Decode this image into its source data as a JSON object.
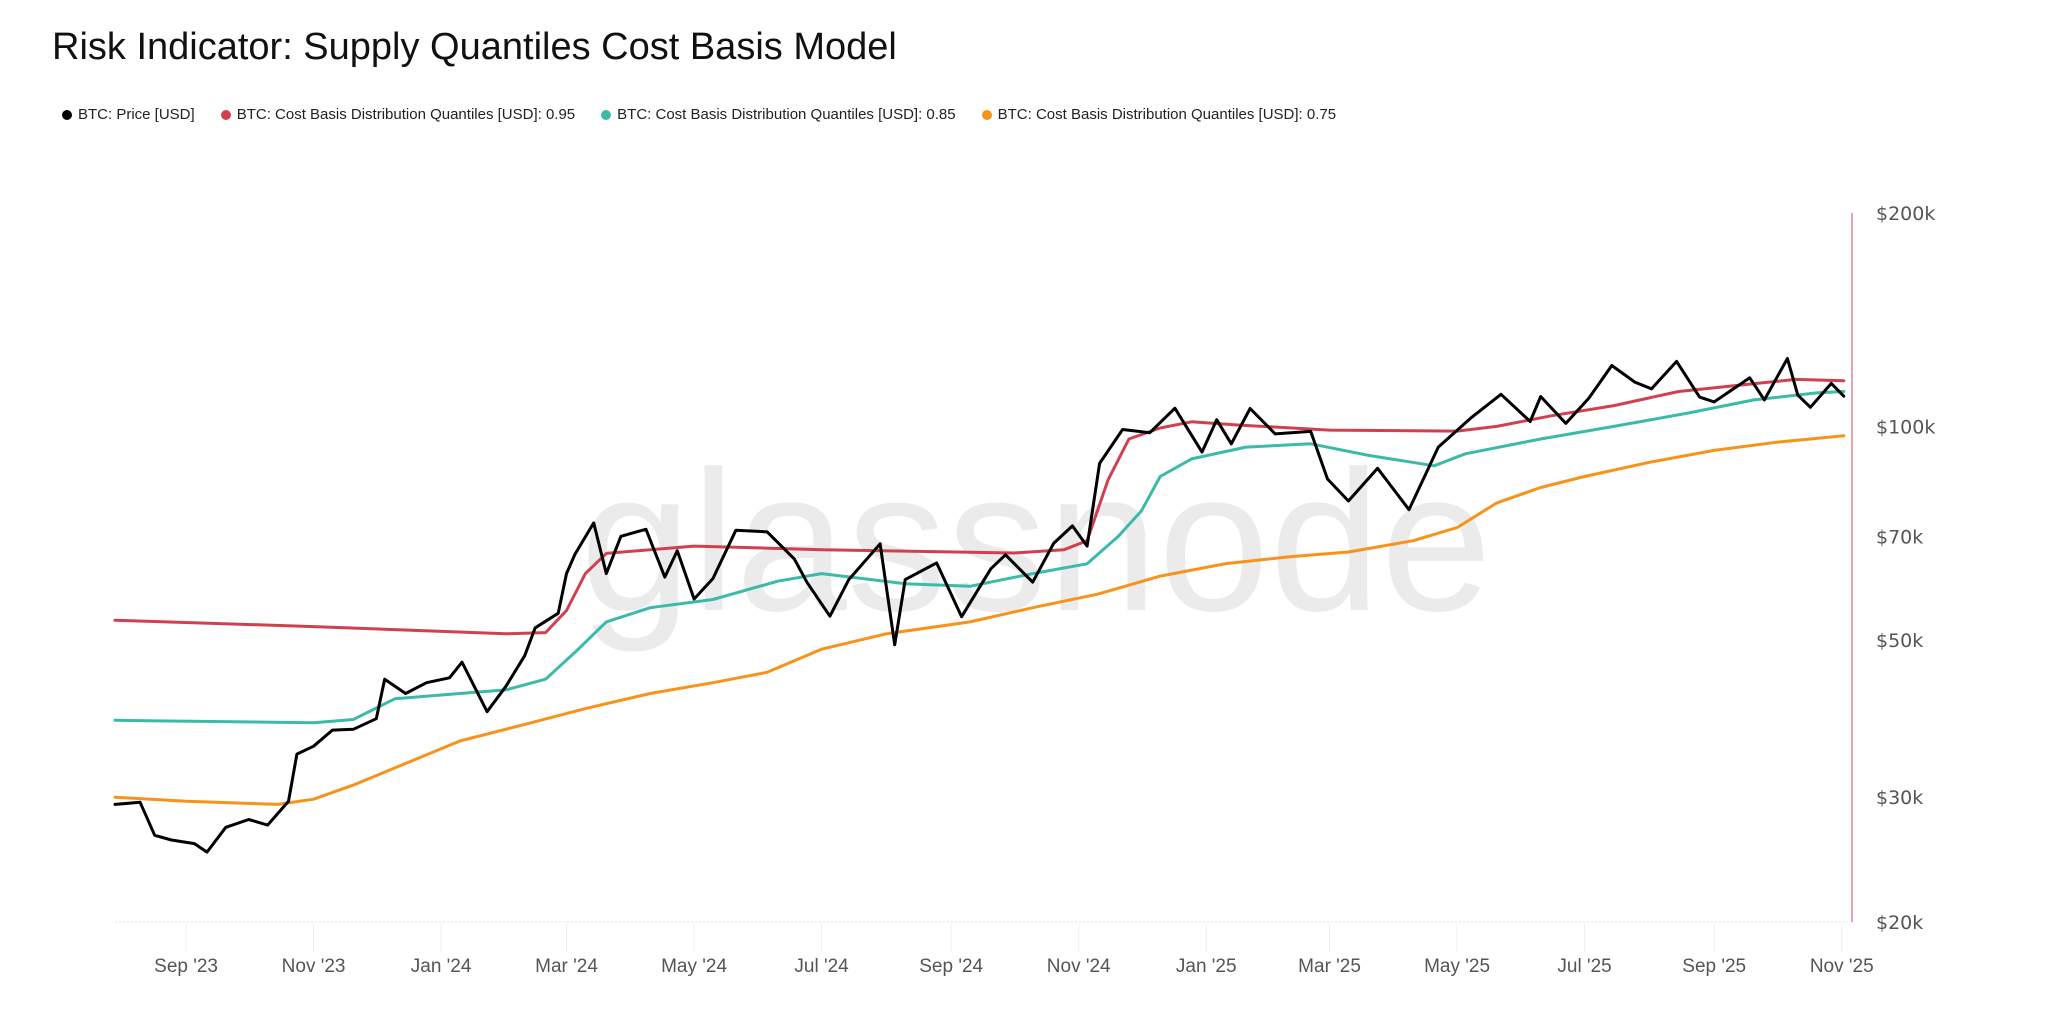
{
  "title": "Risk Indicator: Supply Quantiles Cost Basis Model",
  "watermark": "glassnode",
  "chart_data": {
    "type": "line",
    "title": "Risk Indicator: Supply Quantiles Cost Basis Model",
    "y_scale": "log",
    "ylim": [
      20000,
      200000
    ],
    "xlim": [
      "2023-07-29",
      "2025-11-04"
    ],
    "y_ticks": [
      {
        "v": 200000,
        "label": "$200k"
      },
      {
        "v": 100000,
        "label": "$100k"
      },
      {
        "v": 70000,
        "label": "$70k"
      },
      {
        "v": 50000,
        "label": "$50k"
      },
      {
        "v": 30000,
        "label": "$30k"
      },
      {
        "v": 20000,
        "label": "$20k"
      }
    ],
    "x_ticks": [
      {
        "d": "2023-09-01",
        "label": "Sep '23"
      },
      {
        "d": "2023-11-01",
        "label": "Nov '23"
      },
      {
        "d": "2024-01-01",
        "label": "Jan '24"
      },
      {
        "d": "2024-03-01",
        "label": "Mar '24"
      },
      {
        "d": "2024-05-01",
        "label": "May '24"
      },
      {
        "d": "2024-07-01",
        "label": "Jul '24"
      },
      {
        "d": "2024-09-01",
        "label": "Sep '24"
      },
      {
        "d": "2024-11-01",
        "label": "Nov '24"
      },
      {
        "d": "2025-01-01",
        "label": "Jan '25"
      },
      {
        "d": "2025-03-01",
        "label": "Mar '25"
      },
      {
        "d": "2025-05-01",
        "label": "May '25"
      },
      {
        "d": "2025-07-01",
        "label": "Jul '25"
      },
      {
        "d": "2025-09-01",
        "label": "Sep '25"
      },
      {
        "d": "2025-11-01",
        "label": "Nov '25"
      }
    ],
    "grid": false,
    "legend_position": "top-left",
    "series": [
      {
        "name": "BTC: Price [USD]",
        "color": "#000000",
        "width": 3,
        "points": [
          [
            "2023-07-29",
            29300
          ],
          [
            "2023-08-10",
            29500
          ],
          [
            "2023-08-17",
            26500
          ],
          [
            "2023-08-25",
            26100
          ],
          [
            "2023-09-05",
            25800
          ],
          [
            "2023-09-11",
            25100
          ],
          [
            "2023-09-20",
            27200
          ],
          [
            "2023-10-01",
            27900
          ],
          [
            "2023-10-10",
            27400
          ],
          [
            "2023-10-20",
            29600
          ],
          [
            "2023-10-24",
            34500
          ],
          [
            "2023-11-01",
            35400
          ],
          [
            "2023-11-10",
            37300
          ],
          [
            "2023-11-20",
            37400
          ],
          [
            "2023-12-01",
            38700
          ],
          [
            "2023-12-05",
            44000
          ],
          [
            "2023-12-15",
            42000
          ],
          [
            "2023-12-25",
            43500
          ],
          [
            "2024-01-05",
            44200
          ],
          [
            "2024-01-11",
            46500
          ],
          [
            "2024-01-23",
            39600
          ],
          [
            "2024-02-01",
            43000
          ],
          [
            "2024-02-10",
            47500
          ],
          [
            "2024-02-15",
            52000
          ],
          [
            "2024-02-26",
            54500
          ],
          [
            "2024-03-01",
            62000
          ],
          [
            "2024-03-05",
            66000
          ],
          [
            "2024-03-14",
            73100
          ],
          [
            "2024-03-20",
            62000
          ],
          [
            "2024-03-27",
            70000
          ],
          [
            "2024-04-08",
            71600
          ],
          [
            "2024-04-17",
            61300
          ],
          [
            "2024-04-23",
            66800
          ],
          [
            "2024-05-01",
            57100
          ],
          [
            "2024-05-10",
            61000
          ],
          [
            "2024-05-21",
            71400
          ],
          [
            "2024-06-05",
            71000
          ],
          [
            "2024-06-18",
            65000
          ],
          [
            "2024-06-24",
            60300
          ],
          [
            "2024-07-05",
            54000
          ],
          [
            "2024-07-14",
            60800
          ],
          [
            "2024-07-29",
            68300
          ],
          [
            "2024-08-05",
            49200
          ],
          [
            "2024-08-10",
            60800
          ],
          [
            "2024-08-25",
            64200
          ],
          [
            "2024-09-06",
            53900
          ],
          [
            "2024-09-20",
            63000
          ],
          [
            "2024-09-27",
            65900
          ],
          [
            "2024-10-10",
            60300
          ],
          [
            "2024-10-20",
            68400
          ],
          [
            "2024-10-29",
            72400
          ],
          [
            "2024-11-05",
            67800
          ],
          [
            "2024-11-11",
            88700
          ],
          [
            "2024-11-22",
            99000
          ],
          [
            "2024-12-05",
            98000
          ],
          [
            "2024-12-17",
            106100
          ],
          [
            "2024-12-30",
            92000
          ],
          [
            "2025-01-06",
            102200
          ],
          [
            "2025-01-13",
            94500
          ],
          [
            "2025-01-22",
            106000
          ],
          [
            "2025-02-03",
            97600
          ],
          [
            "2025-02-20",
            98400
          ],
          [
            "2025-02-28",
            84300
          ],
          [
            "2025-03-10",
            78500
          ],
          [
            "2025-03-24",
            87300
          ],
          [
            "2025-04-08",
            76300
          ],
          [
            "2025-04-22",
            93500
          ],
          [
            "2025-05-08",
            103000
          ],
          [
            "2025-05-22",
            111000
          ],
          [
            "2025-06-05",
            101600
          ],
          [
            "2025-06-10",
            110200
          ],
          [
            "2025-06-22",
            101000
          ],
          [
            "2025-07-03",
            109600
          ],
          [
            "2025-07-14",
            121900
          ],
          [
            "2025-07-25",
            115500
          ],
          [
            "2025-08-02",
            113000
          ],
          [
            "2025-08-14",
            123500
          ],
          [
            "2025-08-25",
            110000
          ],
          [
            "2025-09-01",
            108300
          ],
          [
            "2025-09-18",
            117100
          ],
          [
            "2025-09-25",
            109000
          ],
          [
            "2025-10-06",
            124700
          ],
          [
            "2025-10-11",
            110700
          ],
          [
            "2025-10-17",
            106400
          ],
          [
            "2025-10-27",
            115000
          ],
          [
            "2025-11-02",
            110300
          ]
        ]
      },
      {
        "name": "BTC: Cost Basis Distribution Quantiles [USD]: 0.95",
        "color": "#d0414f",
        "width": 3,
        "points": [
          [
            "2023-07-29",
            53300
          ],
          [
            "2023-11-01",
            52200
          ],
          [
            "2024-02-01",
            51000
          ],
          [
            "2024-02-20",
            51200
          ],
          [
            "2024-03-01",
            55000
          ],
          [
            "2024-03-10",
            62000
          ],
          [
            "2024-03-20",
            66200
          ],
          [
            "2024-05-01",
            67800
          ],
          [
            "2024-07-01",
            67000
          ],
          [
            "2024-10-01",
            66300
          ],
          [
            "2024-10-25",
            67000
          ],
          [
            "2024-11-05",
            69000
          ],
          [
            "2024-11-15",
            84000
          ],
          [
            "2024-11-25",
            96000
          ],
          [
            "2024-12-10",
            99500
          ],
          [
            "2024-12-25",
            101500
          ],
          [
            "2025-01-15",
            100500
          ],
          [
            "2025-03-01",
            98800
          ],
          [
            "2025-05-01",
            98500
          ],
          [
            "2025-05-20",
            100000
          ],
          [
            "2025-06-15",
            103500
          ],
          [
            "2025-07-15",
            107000
          ],
          [
            "2025-08-15",
            112000
          ],
          [
            "2025-09-15",
            114500
          ],
          [
            "2025-10-10",
            116500
          ],
          [
            "2025-11-02",
            116000
          ]
        ]
      },
      {
        "name": "BTC: Cost Basis Distribution Quantiles [USD]: 0.85",
        "color": "#3cbaa8",
        "width": 3,
        "points": [
          [
            "2023-07-29",
            38500
          ],
          [
            "2023-11-01",
            38200
          ],
          [
            "2023-11-20",
            38600
          ],
          [
            "2023-12-10",
            41300
          ],
          [
            "2024-01-10",
            42000
          ],
          [
            "2024-02-01",
            42500
          ],
          [
            "2024-02-20",
            44000
          ],
          [
            "2024-03-05",
            48000
          ],
          [
            "2024-03-20",
            53000
          ],
          [
            "2024-04-10",
            55500
          ],
          [
            "2024-05-10",
            57000
          ],
          [
            "2024-06-10",
            60500
          ],
          [
            "2024-07-01",
            62000
          ],
          [
            "2024-08-10",
            60000
          ],
          [
            "2024-09-10",
            59500
          ],
          [
            "2024-10-10",
            62000
          ],
          [
            "2024-11-05",
            64000
          ],
          [
            "2024-11-20",
            70000
          ],
          [
            "2024-12-01",
            76000
          ],
          [
            "2024-12-10",
            85000
          ],
          [
            "2024-12-25",
            90000
          ],
          [
            "2025-01-20",
            93500
          ],
          [
            "2025-02-20",
            94500
          ],
          [
            "2025-03-20",
            91000
          ],
          [
            "2025-04-20",
            88000
          ],
          [
            "2025-05-05",
            91500
          ],
          [
            "2025-06-10",
            96000
          ],
          [
            "2025-07-15",
            100000
          ],
          [
            "2025-08-20",
            104500
          ],
          [
            "2025-09-20",
            109000
          ],
          [
            "2025-10-20",
            111500
          ],
          [
            "2025-11-02",
            112000
          ]
        ]
      },
      {
        "name": "BTC: Cost Basis Distribution Quantiles [USD]: 0.75",
        "color": "#f7931a",
        "width": 3,
        "points": [
          [
            "2023-07-29",
            30000
          ],
          [
            "2023-09-01",
            29600
          ],
          [
            "2023-10-15",
            29300
          ],
          [
            "2023-11-01",
            29800
          ],
          [
            "2023-11-20",
            31200
          ],
          [
            "2023-12-10",
            33000
          ],
          [
            "2024-01-10",
            36000
          ],
          [
            "2024-02-10",
            38000
          ],
          [
            "2024-03-10",
            40000
          ],
          [
            "2024-04-10",
            42000
          ],
          [
            "2024-05-10",
            43500
          ],
          [
            "2024-06-05",
            45000
          ],
          [
            "2024-07-01",
            48500
          ],
          [
            "2024-08-01",
            51000
          ],
          [
            "2024-09-10",
            53000
          ],
          [
            "2024-10-10",
            55500
          ],
          [
            "2024-11-10",
            58000
          ],
          [
            "2024-12-10",
            61500
          ],
          [
            "2025-01-10",
            64000
          ],
          [
            "2025-02-10",
            65500
          ],
          [
            "2025-03-10",
            66500
          ],
          [
            "2025-04-10",
            69000
          ],
          [
            "2025-05-01",
            72000
          ],
          [
            "2025-05-20",
            78000
          ],
          [
            "2025-06-10",
            82000
          ],
          [
            "2025-07-01",
            85000
          ],
          [
            "2025-08-01",
            89000
          ],
          [
            "2025-09-01",
            92500
          ],
          [
            "2025-10-01",
            95000
          ],
          [
            "2025-11-02",
            97000
          ]
        ]
      }
    ]
  }
}
